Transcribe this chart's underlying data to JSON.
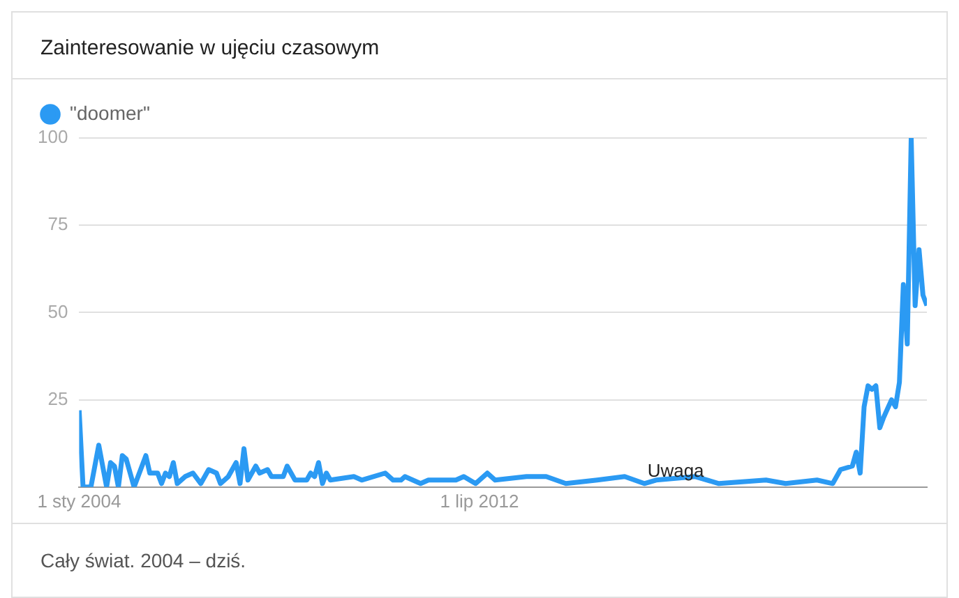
{
  "chart_data": {
    "type": "line",
    "title": "Zainteresowanie w ujęciu czasowym",
    "x": [
      "2004-01",
      "2004-02",
      "2004-04",
      "2004-06",
      "2004-08",
      "2004-09",
      "2004-10",
      "2004-11",
      "2004-12",
      "2005-01",
      "2005-03",
      "2005-06",
      "2005-07",
      "2005-09",
      "2005-10",
      "2005-11",
      "2005-12",
      "2006-01",
      "2006-02",
      "2006-04",
      "2006-06",
      "2006-08",
      "2006-10",
      "2006-12",
      "2007-01",
      "2007-03",
      "2007-05",
      "2007-06",
      "2007-07",
      "2007-08",
      "2007-10",
      "2007-11",
      "2008-01",
      "2008-02",
      "2008-05",
      "2008-06",
      "2008-08",
      "2008-11",
      "2008-12",
      "2009-01",
      "2009-02",
      "2009-03",
      "2009-04",
      "2009-05",
      "2009-11",
      "2010-01",
      "2010-07",
      "2010-09",
      "2010-11",
      "2010-12",
      "2011-04",
      "2011-06",
      "2012-01",
      "2012-03",
      "2012-06",
      "2012-09",
      "2012-11",
      "2013-07",
      "2013-12",
      "2014-05",
      "2015-01",
      "2015-08",
      "2016-01",
      "2016-04",
      "2017-02",
      "2017-08",
      "2018-08",
      "2019-01",
      "2019-09",
      "2020-01",
      "2020-03",
      "2020-06",
      "2020-07",
      "2020-08",
      "2020-09",
      "2020-10",
      "2020-11",
      "2020-12",
      "2021-01",
      "2021-02",
      "2021-04",
      "2021-05",
      "2021-06",
      "2021-07",
      "2021-08",
      "2021-09",
      "2021-10",
      "2021-11",
      "2021-12",
      "2022-01"
    ],
    "series": [
      {
        "name": "\"doomer\"",
        "color": "#2b9af3",
        "values": [
          22,
          0,
          0,
          12,
          0,
          7,
          6,
          0,
          9,
          8,
          0,
          9,
          4,
          4,
          1,
          4,
          3,
          7,
          1,
          3,
          4,
          1,
          5,
          4,
          1,
          3,
          7,
          1,
          11,
          2,
          6,
          4,
          5,
          3,
          3,
          6,
          2,
          2,
          4,
          3,
          7,
          1,
          4,
          2,
          3,
          2,
          4,
          2,
          2,
          3,
          1,
          2,
          2,
          3,
          1,
          4,
          2,
          3,
          3,
          1,
          2,
          3,
          1,
          2,
          3,
          1,
          2,
          1,
          2,
          1,
          5,
          6,
          10,
          4,
          23,
          29,
          28,
          29,
          17,
          20,
          25,
          23,
          30,
          58,
          41,
          100,
          52,
          68,
          55,
          52
        ]
      }
    ],
    "xlim": [
      "2004-01",
      "2022-01"
    ],
    "xticks": [
      {
        "value": "2004-01",
        "label": "1 sty 2004"
      },
      {
        "value": "2012-07",
        "label": "1 lip 2012"
      }
    ],
    "ylim": [
      0,
      100
    ],
    "yticks": [
      {
        "value": 0,
        "label": null
      },
      25,
      50,
      75,
      100
    ],
    "grid": "y",
    "legend": "top left",
    "marker": "none",
    "line_style": "solid",
    "annotations": [
      "Cały świat. 2004 – dziś.",
      {
        "text": "Uwaga",
        "x": "2016-09",
        "y": 1
      }
    ]
  }
}
